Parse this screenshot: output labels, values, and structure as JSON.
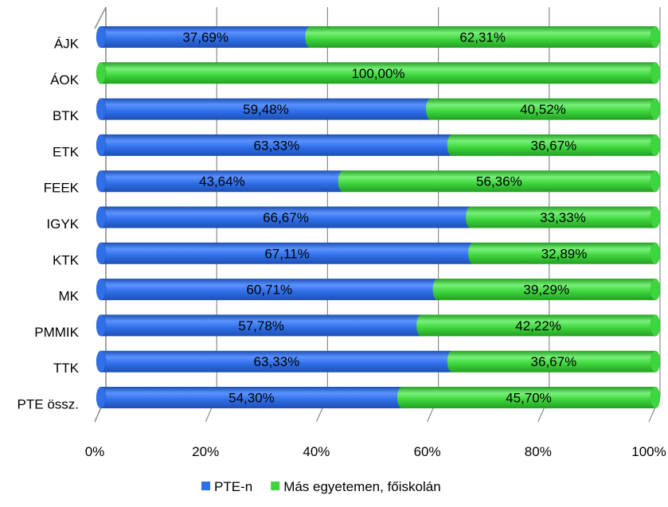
{
  "chart_data": {
    "type": "bar",
    "orientation": "horizontal",
    "stacked": true,
    "percent_stacked": true,
    "style": "3d-cylinder",
    "title": "",
    "xlabel": "",
    "ylabel": "",
    "categories": [
      "ÁJK",
      "ÁOK",
      "BTK",
      "ETK",
      "FEEK",
      "IGYK",
      "KTK",
      "MK",
      "PMMIK",
      "TTK",
      "PTE össz."
    ],
    "series": [
      {
        "name": "PTE-n",
        "color": "#2f6fe8",
        "values": [
          37.69,
          0,
          59.48,
          63.33,
          43.64,
          66.67,
          67.11,
          60.71,
          57.78,
          63.33,
          54.3
        ],
        "labels": [
          "37,69%",
          "",
          "59,48%",
          "63,33%",
          "43,64%",
          "66,67%",
          "67,11%",
          "60,71%",
          "57,78%",
          "63,33%",
          "54,30%"
        ]
      },
      {
        "name": "Más egyetemen, főiskolán",
        "color": "#3ed63e",
        "values": [
          62.31,
          100.0,
          40.52,
          36.67,
          56.36,
          33.33,
          32.89,
          39.29,
          42.22,
          36.67,
          45.7
        ],
        "labels": [
          "62,31%",
          "100,00%",
          "40,52%",
          "36,67%",
          "56,36%",
          "33,33%",
          "32,89%",
          "39,29%",
          "42,22%",
          "36,67%",
          "45,70%"
        ]
      }
    ],
    "xlim": [
      0,
      100
    ],
    "x_ticks": [
      "0%",
      "20%",
      "40%",
      "60%",
      "80%",
      "100%"
    ],
    "grid": true,
    "legend_position": "bottom"
  }
}
